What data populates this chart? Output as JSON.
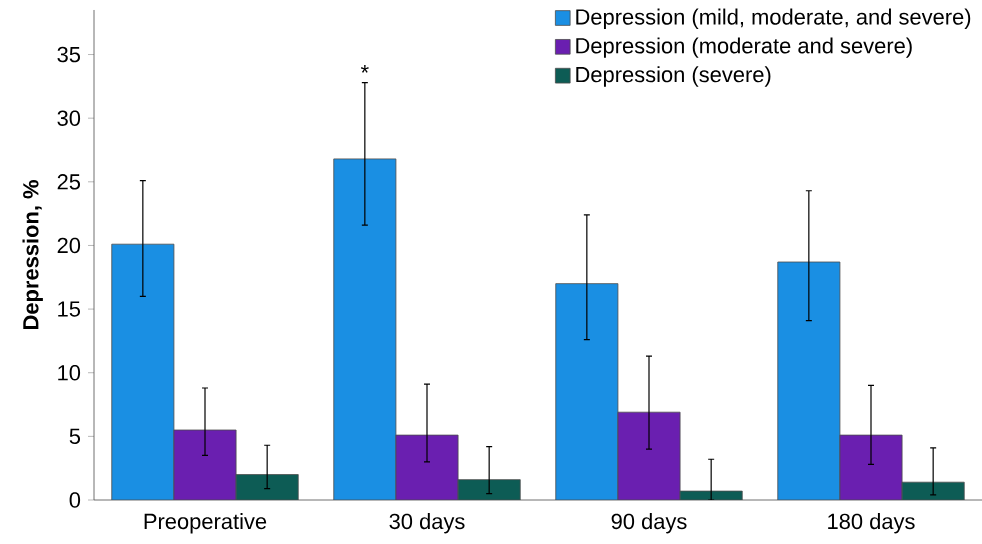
{
  "chart_data": {
    "type": "bar",
    "ylabel": "Depression, %",
    "categories": [
      "Preoperative",
      "30 days",
      "90 days",
      "180 days"
    ],
    "series": [
      {
        "name": "Depression (mild, moderate, and severe)",
        "color": "#1a8fe3",
        "values": [
          20.1,
          26.8,
          17.0,
          18.7
        ],
        "errors": [
          [
            16.0,
            25.1
          ],
          [
            21.6,
            32.8
          ],
          [
            12.6,
            22.4
          ],
          [
            14.1,
            24.3
          ]
        ]
      },
      {
        "name": "Depression (moderate and severe)",
        "color": "#6a1fb0",
        "values": [
          5.5,
          5.1,
          6.9,
          5.1
        ],
        "errors": [
          [
            3.5,
            8.8
          ],
          [
            3.0,
            9.1
          ],
          [
            4.0,
            11.3
          ],
          [
            2.8,
            9.0
          ]
        ]
      },
      {
        "name": "Depression (severe)",
        "color": "#0d5c55",
        "values": [
          2.0,
          1.6,
          0.7,
          1.4
        ],
        "errors": [
          [
            0.9,
            4.3
          ],
          [
            0.5,
            4.2
          ],
          [
            0.0,
            3.2
          ],
          [
            0.4,
            4.1
          ]
        ]
      }
    ],
    "annotations": [
      "*"
    ],
    "ylim": [
      0,
      38.5
    ],
    "yticks": [
      0,
      5,
      10,
      15,
      20,
      25,
      30,
      35
    ],
    "grid": false,
    "legend": "top right"
  }
}
